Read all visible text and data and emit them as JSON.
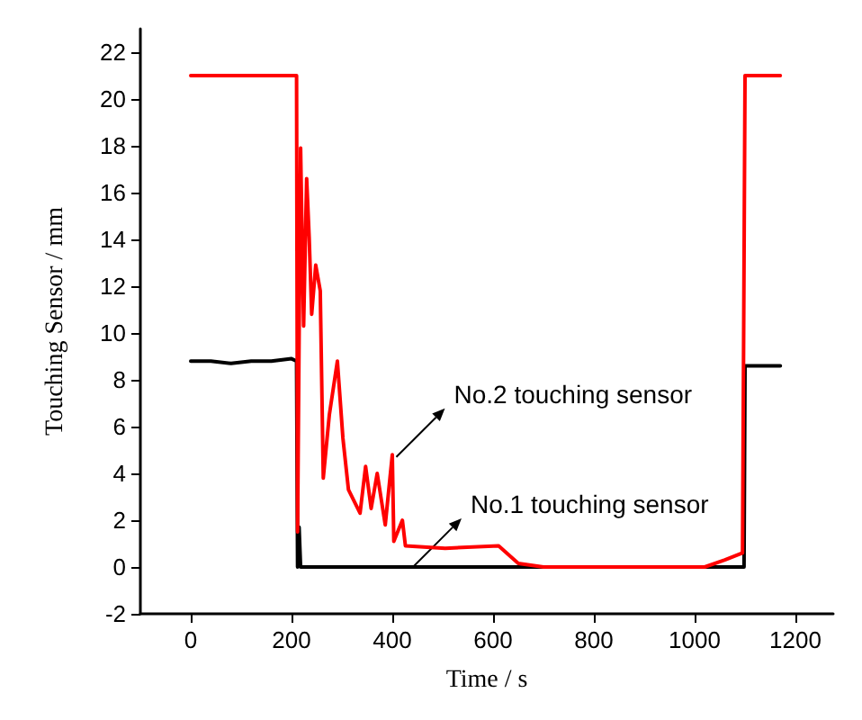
{
  "chart_data": {
    "type": "line",
    "xlabel": "Time / s",
    "ylabel": "Touching Sensor / mm",
    "xlim": [
      -100,
      1275
    ],
    "xticks": [
      0,
      200,
      400,
      600,
      800,
      1000,
      1200
    ],
    "ylim": [
      -2,
      23
    ],
    "yticks": [
      -2,
      0,
      2,
      4,
      6,
      8,
      10,
      12,
      14,
      16,
      18,
      20,
      22
    ],
    "grid": false,
    "marker": "none",
    "line_style": "solid",
    "series": [
      {
        "color": "#000000",
        "x": [
          0,
          40,
          80,
          120,
          160,
          200,
          210,
          212,
          215,
          218,
          222,
          300,
          400,
          500,
          600,
          700,
          800,
          900,
          1000,
          1098,
          1100,
          1102,
          1170
        ],
        "values": [
          8.8,
          8.8,
          8.7,
          8.8,
          8.8,
          8.9,
          8.8,
          0,
          1.7,
          0,
          0,
          0,
          0,
          0,
          0,
          0,
          0,
          0,
          0,
          0,
          8.6,
          8.6,
          8.6
        ]
      },
      {
        "color": "#ff0000",
        "x": [
          0,
          100,
          210,
          212,
          218,
          224,
          230,
          235,
          240,
          248,
          257,
          263,
          275,
          291,
          302,
          313,
          336,
          347,
          358,
          370,
          386,
          400,
          403,
          420,
          426,
          505,
          611,
          650,
          700,
          800,
          900,
          1020,
          1060,
          1095,
          1100,
          1105,
          1170
        ],
        "values": [
          21,
          21,
          21,
          1.5,
          17.9,
          10.3,
          16.6,
          14.1,
          10.8,
          12.9,
          11.8,
          3.8,
          6.5,
          8.8,
          5.5,
          3.3,
          2.3,
          4.3,
          2.5,
          4,
          1.8,
          4.8,
          1.1,
          2,
          0.9,
          0.8,
          0.9,
          0.15,
          0,
          0,
          0,
          0,
          0.3,
          0.6,
          21,
          21,
          21
        ]
      }
    ],
    "annotations": [
      {
        "text": "No.2 touching sensor",
        "x": 408,
        "y": 4.7
      },
      {
        "text": "No.1 touching sensor",
        "x": 441,
        "y": 0
      }
    ]
  }
}
